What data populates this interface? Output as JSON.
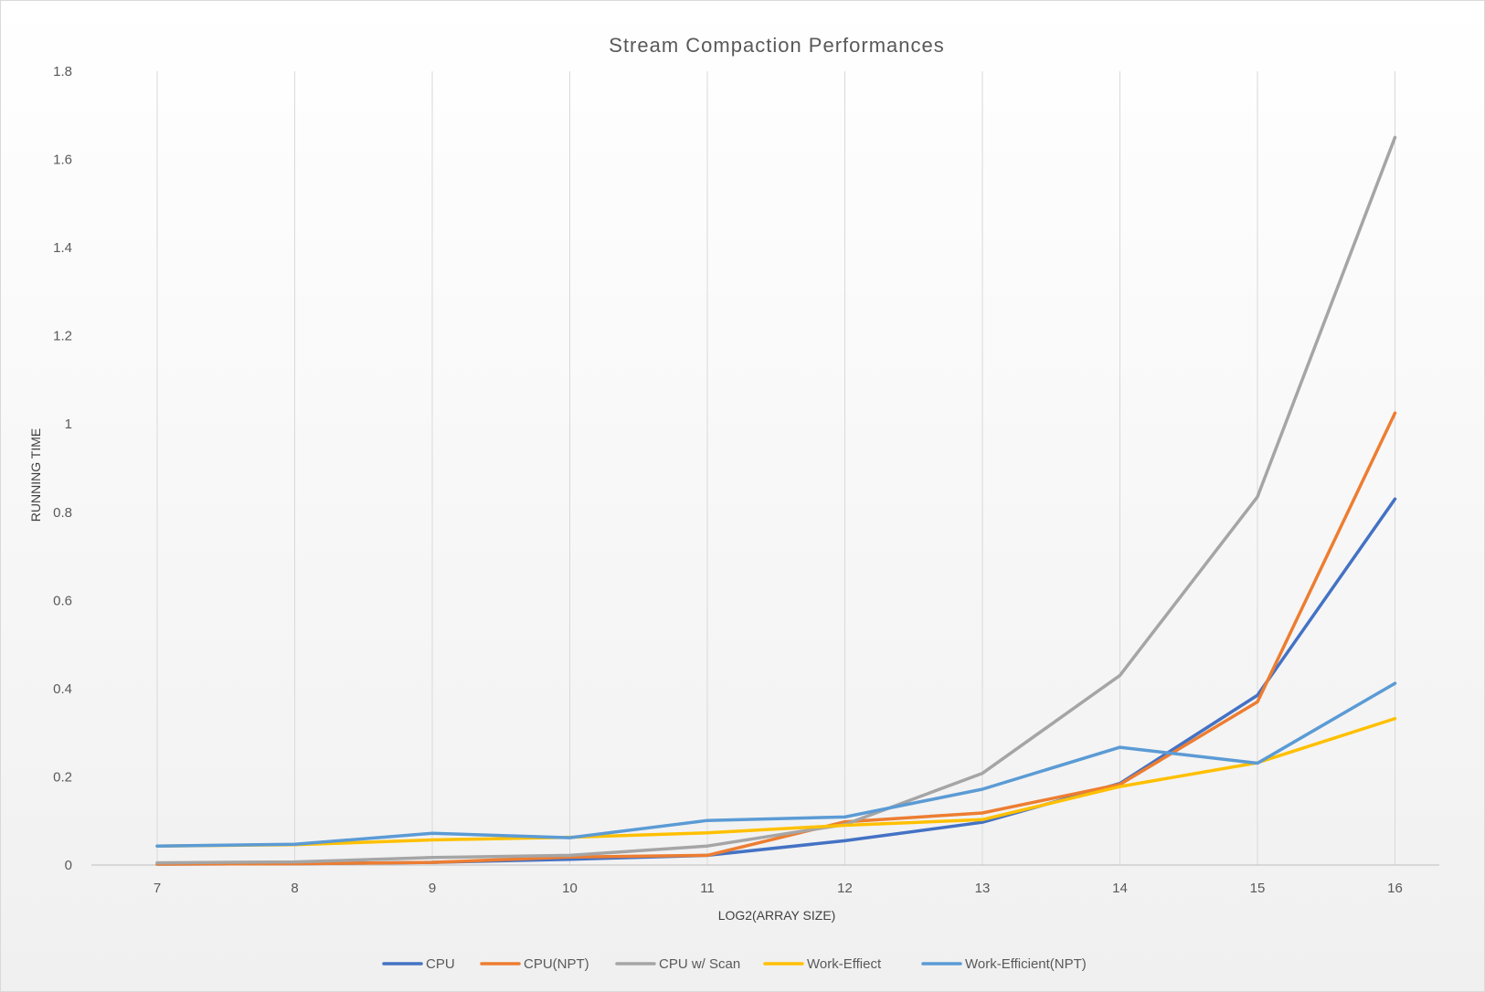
{
  "chart_data": {
    "type": "line",
    "title": "Stream Compaction Performances",
    "xlabel": "LOG2(ARRAY SIZE)",
    "ylabel": "RUNNING TIME",
    "categories": [
      "7",
      "8",
      "9",
      "10",
      "11",
      "12",
      "13",
      "14",
      "15",
      "16"
    ],
    "ylim": [
      0,
      1.8
    ],
    "yticks": [
      0,
      0.2,
      0.4,
      0.6,
      0.8,
      1,
      1.2,
      1.4,
      1.6,
      1.8
    ],
    "ytick_labels": [
      "0",
      "0.2",
      "0.4",
      "0.6",
      "0.8",
      "1",
      "1.2",
      "1.4",
      "1.6",
      "1.8"
    ],
    "grid": "vertical",
    "legend_position": "bottom",
    "series": [
      {
        "name": "CPU",
        "color": "#4472C4",
        "values": [
          0.002,
          0.003,
          0.006,
          0.013,
          0.022,
          0.055,
          0.097,
          0.185,
          0.385,
          0.83
        ]
      },
      {
        "name": "CPU(NPT)",
        "color": "#ED7D31",
        "values": [
          0.002,
          0.003,
          0.006,
          0.018,
          0.022,
          0.098,
          0.118,
          0.183,
          0.37,
          1.025
        ]
      },
      {
        "name": "CPU w/ Scan",
        "color": "#A5A5A5",
        "values": [
          0.005,
          0.007,
          0.017,
          0.022,
          0.043,
          0.092,
          0.208,
          0.43,
          0.835,
          1.65
        ]
      },
      {
        "name": "Work-Effiect",
        "color": "#FFC000",
        "values": [
          0.043,
          0.046,
          0.057,
          0.063,
          0.073,
          0.09,
          0.103,
          0.178,
          0.232,
          0.332
        ]
      },
      {
        "name": "Work-Efficient(NPT)",
        "color": "#5B9BD5",
        "values": [
          0.043,
          0.047,
          0.072,
          0.062,
          0.101,
          0.109,
          0.172,
          0.267,
          0.231,
          0.412
        ]
      }
    ]
  }
}
